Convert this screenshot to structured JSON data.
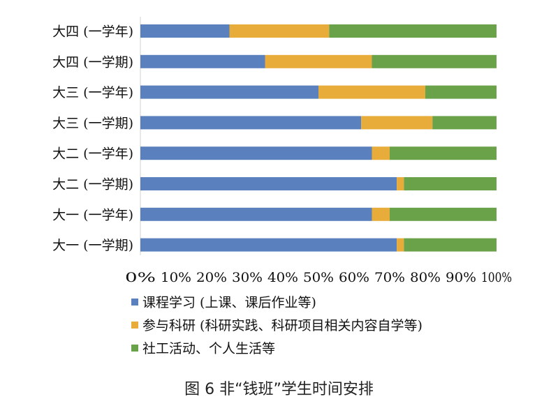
{
  "chart_data": {
    "type": "bar",
    "orientation": "horizontal",
    "stacked": true,
    "categories": [
      "大四 (一学年)",
      "大四 (一学期)",
      "大三 (一学年)",
      "大三 (一学期)",
      "大二 (一学年)",
      "大二 (一学期)",
      "大一 (一学年)",
      "大一 (一学期)"
    ],
    "series": [
      {
        "name": "课程学习 (上课、课后作业等)",
        "color": "#5b80be",
        "values": [
          25,
          35,
          50,
          62,
          65,
          72,
          65,
          72
        ]
      },
      {
        "name": "参与科研 (科研实践、科研项目相关内容自学等)",
        "color": "#e7ac3a",
        "values": [
          28,
          30,
          30,
          20,
          5,
          2,
          5,
          2
        ]
      },
      {
        "name": "社工活动、个人生活等",
        "color": "#6aa24a",
        "values": [
          47,
          35,
          20,
          18,
          30,
          26,
          30,
          26
        ]
      }
    ],
    "xlim": [
      0,
      100
    ],
    "xticks": [
      "0%",
      "10%",
      "20%",
      "30%",
      "40%",
      "50%",
      "60%",
      "70%",
      "80%",
      "90%",
      "100%"
    ],
    "legend_position": "bottom",
    "grid": false
  },
  "caption": "图 6   非“钱班”学生时间安排"
}
